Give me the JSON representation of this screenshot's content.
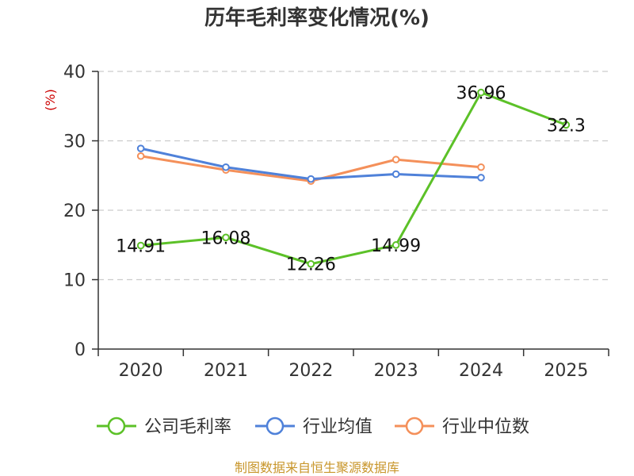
{
  "chart_data": {
    "type": "line",
    "title": "历年毛利率变化情况(%)",
    "ylabel": "(%)",
    "categories": [
      "2020",
      "2021",
      "2022",
      "2023",
      "2024",
      "2025"
    ],
    "ylim": [
      0,
      40
    ],
    "yticks": [
      0,
      10,
      20,
      30,
      40
    ],
    "grid": true,
    "legend_position": "bottom",
    "series": [
      {
        "name": "公司毛利率",
        "color": "#5cc128",
        "values": [
          14.91,
          16.08,
          12.26,
          14.99,
          36.96,
          32.3
        ],
        "labels": [
          "14.91",
          "16.08",
          "12.26",
          "14.99",
          "36.96",
          "32.3"
        ]
      },
      {
        "name": "行业均值",
        "color": "#4f81d9",
        "values": [
          28.9,
          26.2,
          24.5,
          25.2,
          24.7,
          null
        ]
      },
      {
        "name": "行业中位数",
        "color": "#f4905a",
        "values": [
          27.8,
          25.8,
          24.2,
          27.3,
          26.2,
          null
        ]
      }
    ]
  },
  "colors": {
    "unit_label": "#cc0000",
    "source": "#c8962b",
    "axis": "#333333",
    "grid": "#cccccc"
  },
  "source": "制图数据来自恒生聚源数据库"
}
